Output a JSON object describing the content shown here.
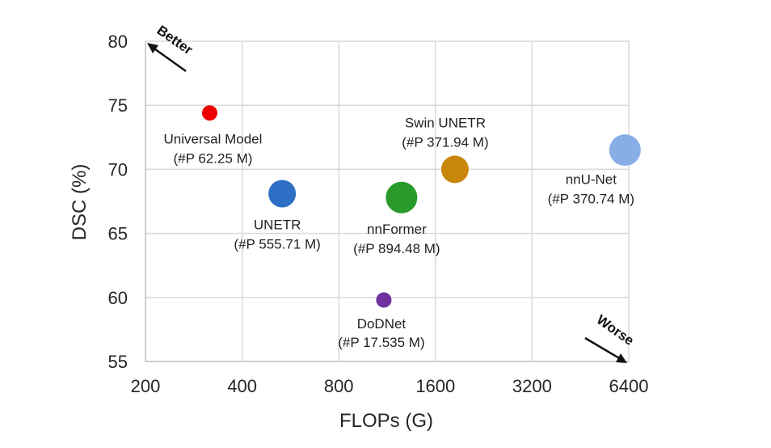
{
  "chart_data": {
    "type": "scatter",
    "title": "",
    "xlabel": "FLOPs (G)",
    "ylabel": "DSC (%)",
    "x_scale": "log2",
    "xlim": [
      200,
      6400
    ],
    "ylim": [
      55,
      80
    ],
    "x_ticks": [
      "200",
      "400",
      "800",
      "1600",
      "3200",
      "6400"
    ],
    "y_ticks": [
      "55",
      "60",
      "65",
      "70",
      "75",
      "80"
    ],
    "grid": true,
    "points": [
      {
        "name": "Universal Model",
        "params": "(#P 62.25 M)",
        "x": 317,
        "y": 74.4,
        "color": "#ee0000",
        "size": "small"
      },
      {
        "name": "UNETR",
        "params": "(#P 555.71 M)",
        "x": 533,
        "y": 68.1,
        "color": "#2e6fc6",
        "size": "medium"
      },
      {
        "name": "nnFormer",
        "params": "(#P 894.48 M)",
        "x": 1255,
        "y": 67.8,
        "color": "#2a9a2a",
        "size": "large"
      },
      {
        "name": "Swin UNETR",
        "params": "(#P 371.94 M)",
        "x": 1840,
        "y": 70.0,
        "color": "#c8860a",
        "size": "medium"
      },
      {
        "name": "nnU-Net",
        "params": "(#P 370.74 M)",
        "x": 6230,
        "y": 71.5,
        "color": "#88aee6",
        "size": "large"
      },
      {
        "name": "DoDNet",
        "params": "(#P 17.535 M)",
        "x": 1105,
        "y": 59.8,
        "color": "#7030a0",
        "size": "small"
      }
    ],
    "annotations": [
      {
        "text": "Better",
        "direction": "top-left"
      },
      {
        "text": "Worse",
        "direction": "bottom-right"
      }
    ]
  }
}
